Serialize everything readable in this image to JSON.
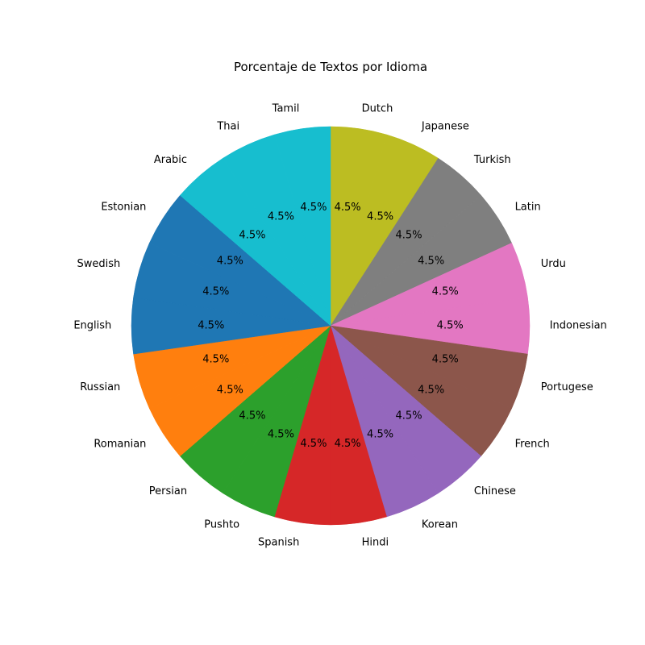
{
  "chart_data": {
    "type": "pie",
    "title": "Porcentaje de Textos por Idioma",
    "start_angle_deg": 90,
    "direction": "clockwise",
    "slices": [
      {
        "label": "Dutch",
        "value": 4.5,
        "pct_label": "4.5%",
        "color": "#bcbd22"
      },
      {
        "label": "Japanese",
        "value": 4.5,
        "pct_label": "4.5%",
        "color": "#bcbd22"
      },
      {
        "label": "Turkish",
        "value": 4.5,
        "pct_label": "4.5%",
        "color": "#7f7f7f"
      },
      {
        "label": "Latin",
        "value": 4.5,
        "pct_label": "4.5%",
        "color": "#7f7f7f"
      },
      {
        "label": "Urdu",
        "value": 4.5,
        "pct_label": "4.5%",
        "color": "#e377c2"
      },
      {
        "label": "Indonesian",
        "value": 4.5,
        "pct_label": "4.5%",
        "color": "#e377c2"
      },
      {
        "label": "Portugese",
        "value": 4.5,
        "pct_label": "4.5%",
        "color": "#8c564b"
      },
      {
        "label": "French",
        "value": 4.5,
        "pct_label": "4.5%",
        "color": "#8c564b"
      },
      {
        "label": "Chinese",
        "value": 4.5,
        "pct_label": "4.5%",
        "color": "#9467bd"
      },
      {
        "label": "Korean",
        "value": 4.5,
        "pct_label": "4.5%",
        "color": "#9467bd"
      },
      {
        "label": "Hindi",
        "value": 4.5,
        "pct_label": "4.5%",
        "color": "#d62728"
      },
      {
        "label": "Spanish",
        "value": 4.5,
        "pct_label": "4.5%",
        "color": "#d62728"
      },
      {
        "label": "Pushto",
        "value": 4.5,
        "pct_label": "4.5%",
        "color": "#2ca02c"
      },
      {
        "label": "Persian",
        "value": 4.5,
        "pct_label": "4.5%",
        "color": "#2ca02c"
      },
      {
        "label": "Romanian",
        "value": 4.5,
        "pct_label": "4.5%",
        "color": "#ff7f0e"
      },
      {
        "label": "Russian",
        "value": 4.5,
        "pct_label": "4.5%",
        "color": "#ff7f0e"
      },
      {
        "label": "English",
        "value": 4.5,
        "pct_label": "4.5%",
        "color": "#1f77b4"
      },
      {
        "label": "Swedish",
        "value": 4.5,
        "pct_label": "4.5%",
        "color": "#1f77b4"
      },
      {
        "label": "Estonian",
        "value": 4.5,
        "pct_label": "4.5%",
        "color": "#1f77b4"
      },
      {
        "label": "Arabic",
        "value": 4.5,
        "pct_label": "4.5%",
        "color": "#17becf"
      },
      {
        "label": "Thai",
        "value": 4.5,
        "pct_label": "4.5%",
        "color": "#17becf"
      },
      {
        "label": "Tamil",
        "value": 4.5,
        "pct_label": "4.5%",
        "color": "#17becf"
      }
    ]
  }
}
